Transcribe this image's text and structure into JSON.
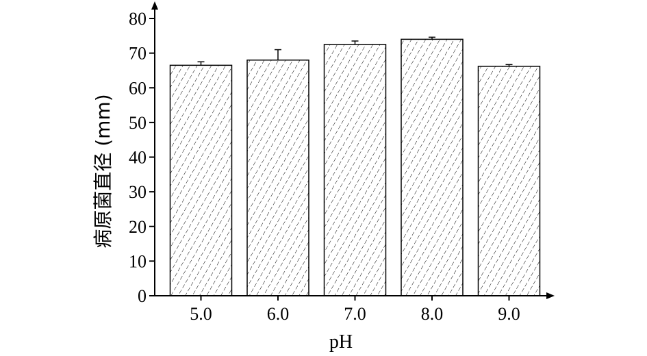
{
  "chart_data": {
    "type": "bar",
    "categories": [
      "5.0",
      "6.0",
      "7.0",
      "8.0",
      "9.0"
    ],
    "values": [
      66.5,
      68.0,
      72.5,
      74.0,
      66.2
    ],
    "errors": [
      1.0,
      3.0,
      1.0,
      0.6,
      0.5
    ],
    "title": "",
    "xlabel": "pH",
    "ylabel": "病原菌直径 (mm)",
    "ylim": [
      0,
      80
    ],
    "yticks": [
      "0",
      "10",
      "20",
      "30",
      "40",
      "50",
      "60",
      "70",
      "80"
    ],
    "grid": false,
    "bar_pattern": "diagonal-hatch",
    "colors": {
      "bar_fill": "#ffffff",
      "hatch": "#000000",
      "outline": "#000000"
    }
  }
}
